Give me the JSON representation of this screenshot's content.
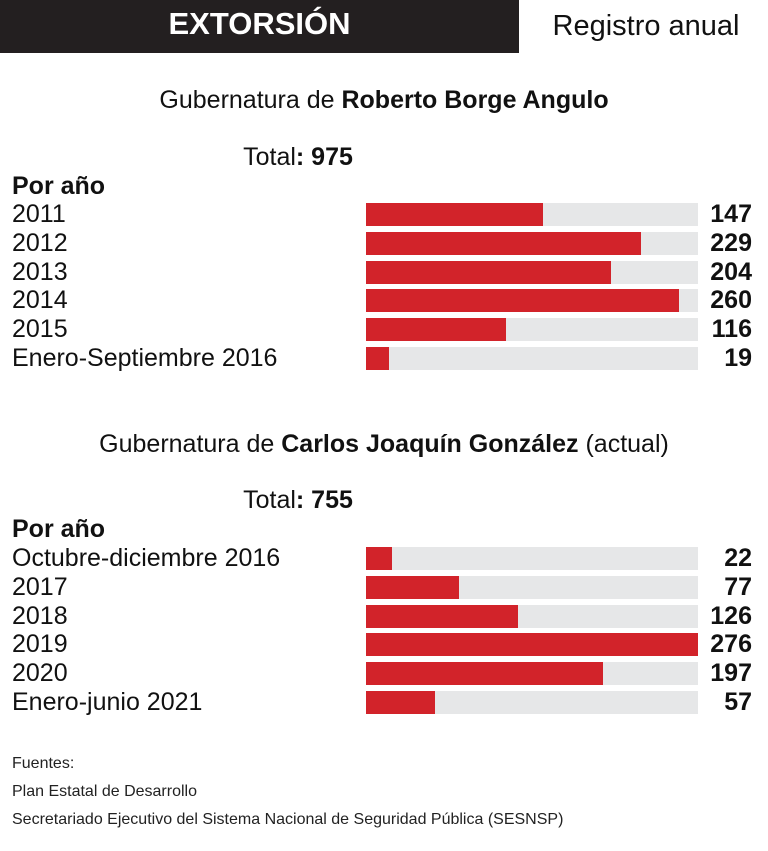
{
  "header": {
    "title": "EXTORSIÓN",
    "subtitle": "Registro anual"
  },
  "chart_data": [
    {
      "type": "bar",
      "title_prefix": "Gubernatura de ",
      "title_name": "Roberto Borge Angulo",
      "title_suffix": "",
      "total_label": "Total",
      "total_value": ": 975",
      "group_label": "Por año",
      "categories": [
        "2011",
        "2012",
        "2013",
        "2014",
        "2015",
        "Enero-Septiembre 2016"
      ],
      "values": [
        147,
        229,
        204,
        260,
        116,
        19
      ],
      "bar_color": "#d2232a",
      "track_color": "#e6e7e8"
    },
    {
      "type": "bar",
      "title_prefix": "Gubernatura de ",
      "title_name": "Carlos Joaquín González",
      "title_suffix": " (actual)",
      "total_label": "Total",
      "total_value": ": 755",
      "group_label": "Por año",
      "categories": [
        "Octubre-diciembre 2016",
        "2017",
        "2018",
        "2019",
        "2020",
        "Enero-junio 2021"
      ],
      "values": [
        22,
        77,
        126,
        276,
        197,
        57
      ],
      "bar_color": "#d2232a",
      "track_color": "#e6e7e8"
    }
  ],
  "scale_max": 276,
  "sources": {
    "heading": "Fuentes:",
    "lines": [
      "Plan Estatal de Desarrollo",
      "Secretariado Ejecutivo del Sistema Nacional de Seguridad Pública (SESNSP)"
    ]
  }
}
